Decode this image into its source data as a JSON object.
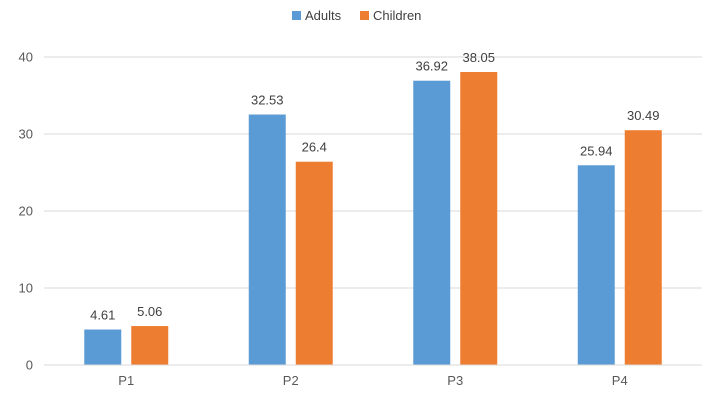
{
  "chart_data": {
    "type": "bar",
    "categories": [
      "P1",
      "P2",
      "P3",
      "P4"
    ],
    "series": [
      {
        "name": "Adults",
        "color": "#5B9BD5",
        "values": [
          4.61,
          32.53,
          36.92,
          25.94
        ],
        "labels": [
          "4.61",
          "32.53",
          "36.92",
          "25.94"
        ]
      },
      {
        "name": "Children",
        "color": "#ED7D31",
        "values": [
          5.06,
          26.4,
          38.05,
          30.49
        ],
        "labels": [
          "5.06",
          "26.4",
          "38.05",
          "30.49"
        ]
      }
    ],
    "ylim": [
      0,
      40
    ],
    "yticks": [
      "0",
      "10",
      "20",
      "30",
      "40"
    ],
    "grid": true,
    "legend_position": "top",
    "gridline_color": "#d9d9d9"
  }
}
